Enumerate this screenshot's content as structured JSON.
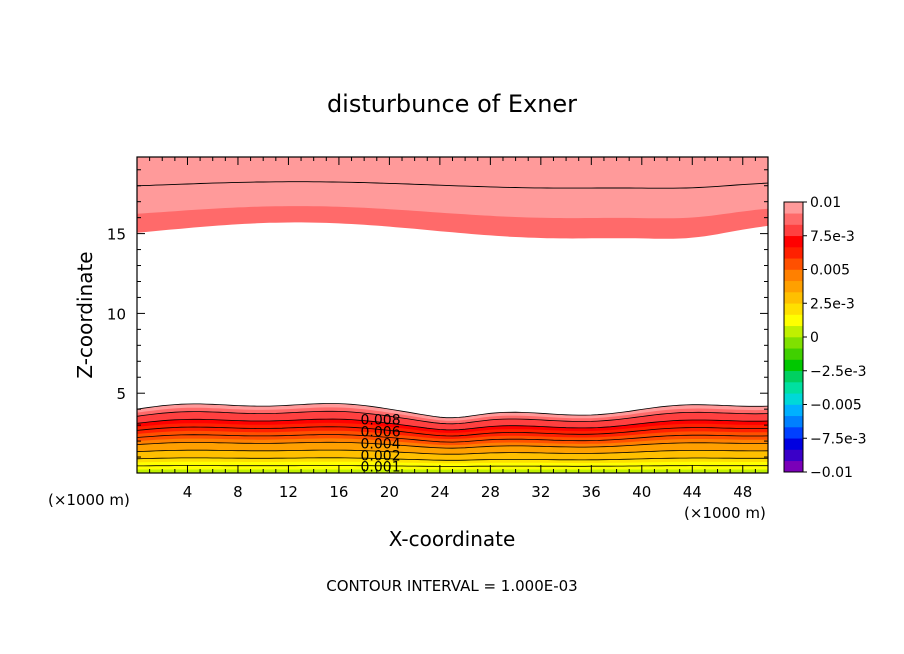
{
  "chart_data": {
    "type": "contour",
    "title": "disturbunce of Exner",
    "xlabel": "X-coordinate",
    "ylabel": "Z-coordinate",
    "x_unit_left": "(×1000 m)",
    "x_unit_right": "(×1000 m)",
    "xlim": [
      0,
      50
    ],
    "ylim": [
      0,
      19.8
    ],
    "xticks": [
      4,
      8,
      12,
      16,
      20,
      24,
      28,
      32,
      36,
      40,
      44,
      48
    ],
    "xtick_labels": [
      "4",
      "8",
      "12",
      "16",
      "20",
      "24",
      "28",
      "32",
      "36",
      "40",
      "44",
      "48"
    ],
    "yticks": [
      5,
      10,
      15
    ],
    "ytick_labels": [
      "5",
      "10",
      "15"
    ],
    "contour_interval_text": "CONTOUR INTERVAL = 1.000E-03",
    "contour_labels": [
      "0.008",
      "0.006",
      "0.004",
      "0.002",
      "0.001"
    ],
    "colorbar": {
      "min": -0.01,
      "max": 0.01,
      "tick_labels": [
        "0.01",
        "7.5e-3",
        "0.005",
        "2.5e-3",
        "0",
        "−2.5e-3",
        "−0.005",
        "−7.5e-3",
        "−0.01"
      ],
      "tick_values": [
        0.01,
        0.0075,
        0.005,
        0.0025,
        0,
        -0.0025,
        -0.005,
        -0.0075,
        -0.01
      ],
      "colors_bottom_to_top": [
        "#7a00b8",
        "#3a00c8",
        "#0000e0",
        "#0040ff",
        "#0080ff",
        "#00b0ff",
        "#00d8d8",
        "#00e0a0",
        "#00d060",
        "#00c800",
        "#40d000",
        "#80e000",
        "#c0f000",
        "#ffff00",
        "#ffe000",
        "#ffc000",
        "#ffa000",
        "#ff8000",
        "#ff5000",
        "#ff2000",
        "#ff0000",
        "#ff4040",
        "#ff6a6a",
        "#ff9a9a"
      ]
    },
    "field_profile": {
      "z_bottom_band_top": 4.0,
      "z_top_band_start": 15.2,
      "z_top": 19.8
    }
  }
}
